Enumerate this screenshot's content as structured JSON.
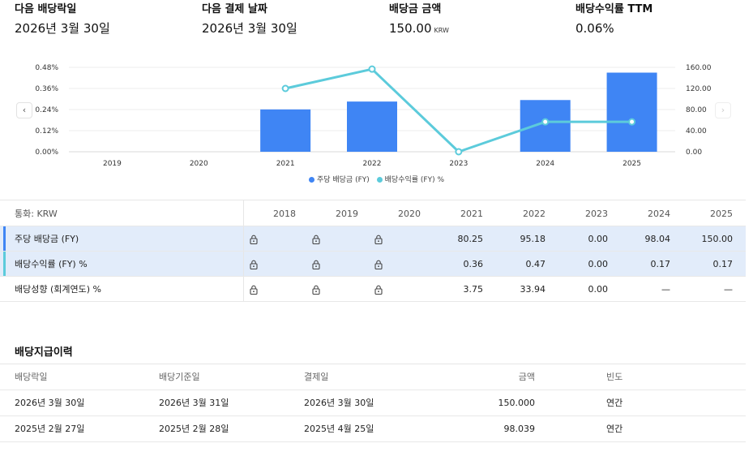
{
  "summary": {
    "next_exdate": {
      "label": "다음 배당락일",
      "value": "2026년 3월 30일"
    },
    "next_paydate": {
      "label": "다음 결제 날짜",
      "value": "2026년 3월 30일"
    },
    "dividend_amount": {
      "label": "배당금 금액",
      "value": "150.00",
      "unit": "KRW"
    },
    "yield_ttm": {
      "label": "배당수익률 TTM",
      "value": "0.06%"
    }
  },
  "chart_data": {
    "type": "bar",
    "categories": [
      "2019",
      "2020",
      "2021",
      "2022",
      "2023",
      "2024",
      "2025"
    ],
    "series": [
      {
        "name": "주당 배당금 (FY)",
        "type": "bar",
        "axis": "right",
        "color": "#3f85f4",
        "values": [
          null,
          null,
          80.25,
          95.18,
          0.0,
          98.04,
          150.0
        ]
      },
      {
        "name": "배당수익률 (FY) %",
        "type": "line",
        "axis": "left",
        "color": "#5ccbdb",
        "values": [
          null,
          null,
          0.36,
          0.47,
          0.0,
          0.17,
          0.17
        ]
      }
    ],
    "left_axis": {
      "ticks": [
        "0.00%",
        "0.12%",
        "0.24%",
        "0.36%",
        "0.48%"
      ],
      "ylim": [
        0,
        0.48
      ]
    },
    "right_axis": {
      "ticks": [
        "0.00",
        "40.00",
        "80.00",
        "120.00",
        "160.00"
      ],
      "ylim": [
        0,
        160
      ]
    },
    "grid": true,
    "legend_position": "bottom"
  },
  "nav": {
    "prev": "‹",
    "next": "›"
  },
  "table": {
    "currency_label": "통화: KRW",
    "years": [
      "2018",
      "2019",
      "2020",
      "2021",
      "2022",
      "2023",
      "2024",
      "2025"
    ],
    "rows": [
      {
        "label": "주당 배당금 (FY)",
        "accent": "#3f85f4",
        "highlight": true,
        "values": [
          "lock",
          "lock",
          "lock",
          "80.25",
          "95.18",
          "0.00",
          "98.04",
          "150.00"
        ]
      },
      {
        "label": "배당수익률 (FY) %",
        "accent": "#5ccbdb",
        "highlight": true,
        "values": [
          "lock",
          "lock",
          "lock",
          "0.36",
          "0.47",
          "0.00",
          "0.17",
          "0.17"
        ]
      },
      {
        "label": "배당성향 (회계연도) %",
        "accent": "",
        "highlight": false,
        "values": [
          "lock",
          "lock",
          "lock",
          "3.75",
          "33.94",
          "0.00",
          "—",
          "—"
        ]
      }
    ]
  },
  "history": {
    "title": "배당지급이력",
    "headers": [
      "배당락일",
      "배당기준일",
      "결제일",
      "금액",
      "빈도"
    ],
    "rows": [
      [
        "2026년 3월 30일",
        "2026년 3월 31일",
        "2026년 3월 30일",
        "150.000",
        "연간"
      ],
      [
        "2025년 2월 27일",
        "2025년 2월 28일",
        "2025년 4월 25일",
        "98.039",
        "연간"
      ]
    ]
  }
}
